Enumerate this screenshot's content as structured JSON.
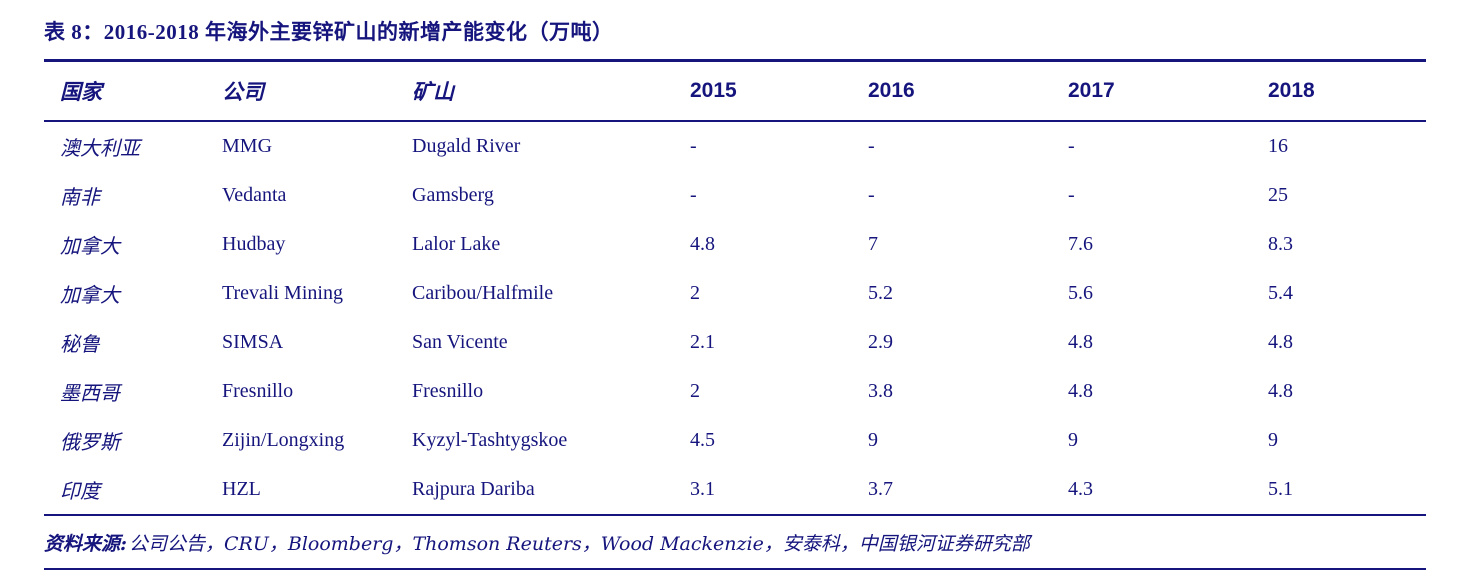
{
  "accent_color": "#15157d",
  "title": "表 8：2016-2018 年海外主要锌矿山的新增产能变化（万吨）",
  "table": {
    "columns": [
      "国家",
      "公司",
      "矿山",
      "2015",
      "2016",
      "2017",
      "2018"
    ],
    "rows": [
      {
        "country": "澳大利亚",
        "company": "MMG",
        "mine": "Dugald River",
        "y2015": "-",
        "y2016": "-",
        "y2017": "-",
        "y2018": "16"
      },
      {
        "country": "南非",
        "company": "Vedanta",
        "mine": "Gamsberg",
        "y2015": "-",
        "y2016": "-",
        "y2017": "-",
        "y2018": "25"
      },
      {
        "country": "加拿大",
        "company": "Hudbay",
        "mine": "Lalor Lake",
        "y2015": "4.8",
        "y2016": "7",
        "y2017": "7.6",
        "y2018": "8.3"
      },
      {
        "country": "加拿大",
        "company": "Trevali Mining",
        "mine": "Caribou/Halfmile",
        "y2015": "2",
        "y2016": "5.2",
        "y2017": "5.6",
        "y2018": "5.4"
      },
      {
        "country": "秘鲁",
        "company": "SIMSA",
        "mine": "San Vicente",
        "y2015": "2.1",
        "y2016": "2.9",
        "y2017": "4.8",
        "y2018": "4.8"
      },
      {
        "country": "墨西哥",
        "company": "Fresnillo",
        "mine": "Fresnillo",
        "y2015": "2",
        "y2016": "3.8",
        "y2017": "4.8",
        "y2018": "4.8"
      },
      {
        "country": "俄罗斯",
        "company": "Zijin/Longxing",
        "mine": "Kyzyl-Tashtygskoe",
        "y2015": "4.5",
        "y2016": "9",
        "y2017": "9",
        "y2018": "9"
      },
      {
        "country": "印度",
        "company": "HZL",
        "mine": "Rajpura Dariba",
        "y2015": "3.1",
        "y2016": "3.7",
        "y2017": "4.3",
        "y2018": "5.1"
      }
    ]
  },
  "footer": {
    "label": "资料来源:",
    "sources": "公司公告，CRU，Bloomberg，Thomson Reuters，Wood Mackenzie，安泰科，中国银河证券研究部"
  }
}
